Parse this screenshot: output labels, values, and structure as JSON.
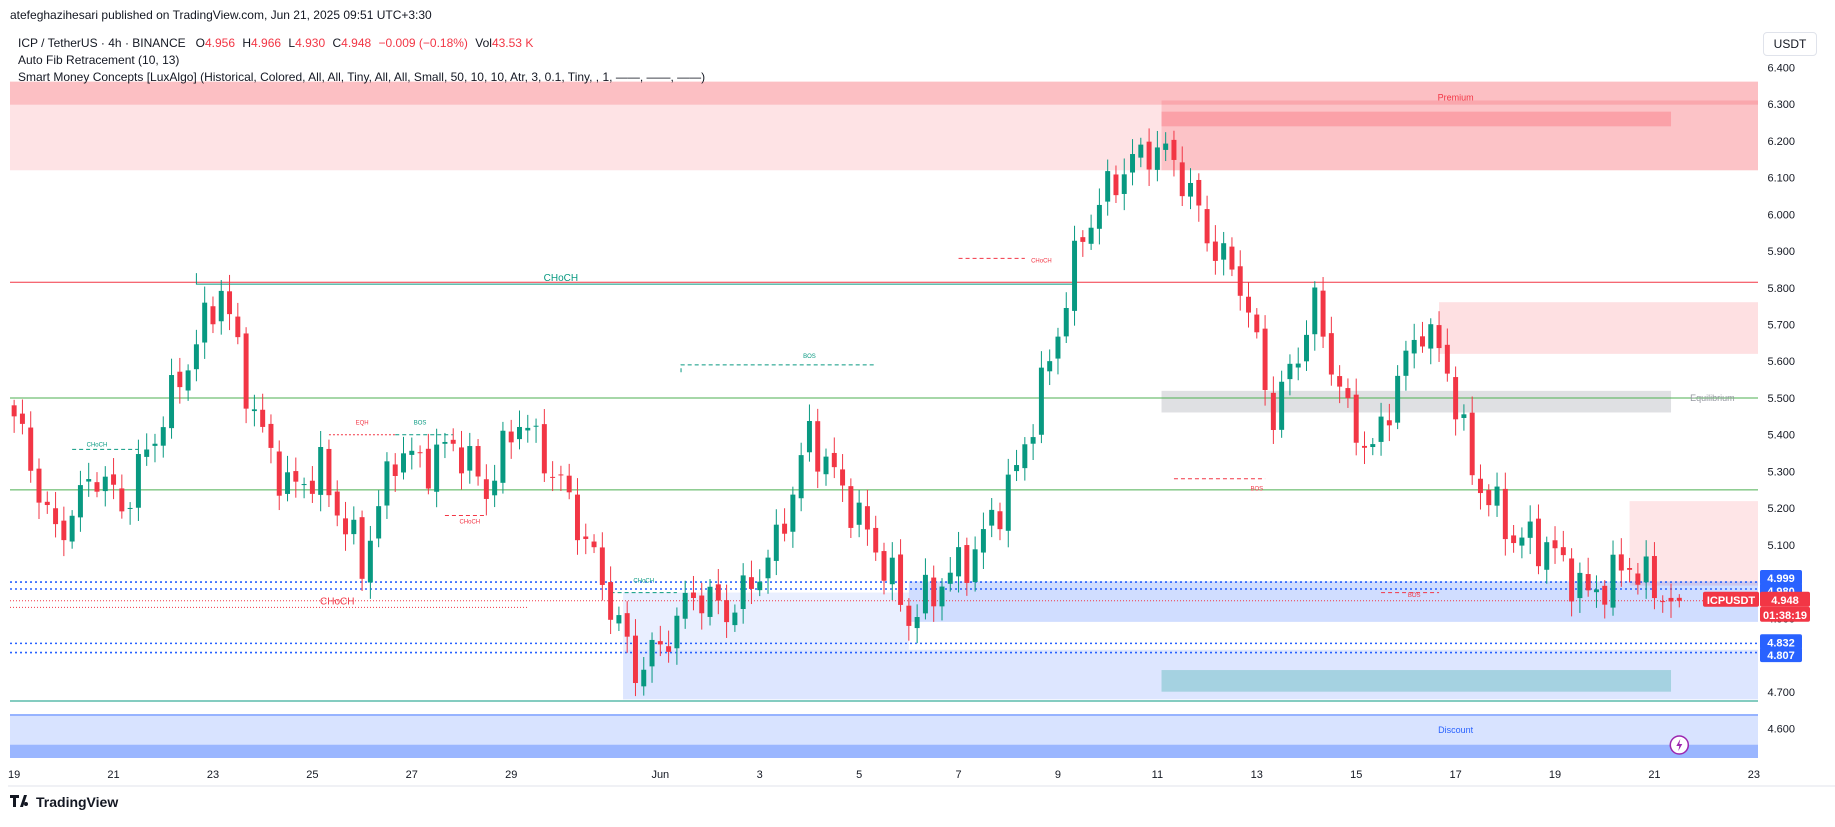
{
  "header": {
    "published_by": "atefeghazihesari published on TradingView.com, Jun 21, 2025 09:51 UTC+3:30"
  },
  "legend": {
    "symbol": "ICP / TetherUS · 4h · BINANCE",
    "open_label": "O",
    "open": "4.956",
    "high_label": "H",
    "high": "4.966",
    "low_label": "L",
    "low": "4.930",
    "close_label": "C",
    "close": "4.948",
    "change": "−0.009 (−0.18%)",
    "vol_label": "Vol",
    "volume": "43.53 K",
    "indicator_1": "Auto Fib Retracement (10, 13)",
    "indicator_2": "Smart Money Concepts [LuxAlgo] (Historical, Colored, All, All, Tiny, All, All, Small, 50, 10, 10, Atr, 3, 0.1, Tiny, , 1, ——, ——, ——)"
  },
  "currency": "USDT",
  "footer": {
    "brand": "TradingView"
  },
  "colors": {
    "up": "#089981",
    "down": "#f23645",
    "premium_zone": "#f7525f",
    "discount_zone": "#2962ff",
    "equilibrium": "#9598a1",
    "structure_bull": "#089981",
    "structure_bear": "#f23645",
    "fib_line": "#4caf50"
  },
  "chart_data": {
    "type": "candlestick",
    "title": "ICP / TetherUS · 4h · BINANCE",
    "ylim": [
      4.52,
      6.42
    ],
    "y_ticks": [
      4.6,
      4.7,
      4.8,
      4.9,
      5.0,
      5.1,
      5.2,
      5.3,
      5.4,
      5.5,
      5.6,
      5.7,
      5.8,
      5.9,
      6.0,
      6.1,
      6.2,
      6.3,
      6.4
    ],
    "y_tick_labels": [
      "4.600",
      "4.700",
      "4.800",
      "4.900",
      "5.000",
      "5.100",
      "5.200",
      "5.300",
      "5.400",
      "5.500",
      "5.600",
      "5.700",
      "5.800",
      "5.900",
      "6.000",
      "6.100",
      "6.200",
      "6.300",
      "6.400"
    ],
    "x_range": [
      -0.5,
      210.5
    ],
    "x_ticks": [
      {
        "i": 0,
        "label": "19"
      },
      {
        "i": 12,
        "label": "21"
      },
      {
        "i": 24,
        "label": "23"
      },
      {
        "i": 36,
        "label": "25"
      },
      {
        "i": 48,
        "label": "27"
      },
      {
        "i": 60,
        "label": "29"
      },
      {
        "i": 78,
        "label": "Jun"
      },
      {
        "i": 90,
        "label": "3"
      },
      {
        "i": 102,
        "label": "5"
      },
      {
        "i": 114,
        "label": "7"
      },
      {
        "i": 126,
        "label": "9"
      },
      {
        "i": 138,
        "label": "11"
      },
      {
        "i": 150,
        "label": "13"
      },
      {
        "i": 162,
        "label": "15"
      },
      {
        "i": 174,
        "label": "17"
      },
      {
        "i": 186,
        "label": "19"
      },
      {
        "i": 198,
        "label": "21"
      },
      {
        "i": 210,
        "label": "23"
      }
    ],
    "key_points": [
      [
        0,
        5.45
      ],
      [
        5,
        5.12
      ],
      [
        10,
        5.3
      ],
      [
        13,
        5.2
      ],
      [
        18,
        5.45
      ],
      [
        22,
        5.65
      ],
      [
        25,
        5.8
      ],
      [
        29,
        5.45
      ],
      [
        33,
        5.25
      ],
      [
        37,
        5.3
      ],
      [
        40,
        5.15
      ],
      [
        42,
        5.05
      ],
      [
        46,
        5.35
      ],
      [
        50,
        5.32
      ],
      [
        53,
        5.38
      ],
      [
        57,
        5.25
      ],
      [
        61,
        5.45
      ],
      [
        65,
        5.3
      ],
      [
        67,
        5.22
      ],
      [
        71,
        5.0
      ],
      [
        75,
        4.76
      ],
      [
        78,
        4.82
      ],
      [
        82,
        4.97
      ],
      [
        86,
        4.92
      ],
      [
        88,
        4.96
      ],
      [
        92,
        5.1
      ],
      [
        96,
        5.4
      ],
      [
        100,
        5.25
      ],
      [
        105,
        5.05
      ],
      [
        108,
        4.9
      ],
      [
        112,
        5.0
      ],
      [
        116,
        5.08
      ],
      [
        121,
        5.3
      ],
      [
        125,
        5.6
      ],
      [
        129,
        5.95
      ],
      [
        133,
        6.1
      ],
      [
        137,
        6.18
      ],
      [
        140,
        6.15
      ],
      [
        145,
        5.9
      ],
      [
        148,
        5.82
      ],
      [
        152,
        5.45
      ],
      [
        157,
        5.75
      ],
      [
        161,
        5.45
      ],
      [
        164,
        5.35
      ],
      [
        167,
        5.55
      ],
      [
        170,
        5.7
      ],
      [
        173,
        5.58
      ],
      [
        176,
        5.3
      ],
      [
        181,
        5.12
      ],
      [
        185,
        5.1
      ],
      [
        190,
        4.96
      ],
      [
        195,
        5.05
      ],
      [
        197,
        5.0
      ],
      [
        200,
        4.95
      ],
      [
        201,
        4.948
      ]
    ],
    "series": [
      {
        "name": "Premium zone",
        "from": 6.12,
        "to": 6.36,
        "label": "Premium"
      },
      {
        "name": "Discount zone",
        "from": 4.55,
        "to": 4.68,
        "label": "Discount"
      },
      {
        "name": "Equilibrium",
        "value": 5.5,
        "label": "Equilibrium"
      }
    ],
    "annotations": [
      {
        "text": "CHoCH",
        "x": 66,
        "y": 5.81,
        "color": "bull",
        "size": "large"
      },
      {
        "text": "CHoCH",
        "x": 39,
        "y": 4.93,
        "color": "bear",
        "size": "large"
      },
      {
        "text": "CHoCH",
        "x": 10,
        "y": 5.36,
        "color": "bull",
        "size": "small"
      },
      {
        "text": "EQH",
        "x": 42,
        "y": 5.42,
        "color": "bear",
        "size": "small"
      },
      {
        "text": "BOS",
        "x": 49,
        "y": 5.42,
        "color": "bull",
        "size": "small"
      },
      {
        "text": "CHoCH",
        "x": 55,
        "y": 5.15,
        "color": "bear",
        "size": "small"
      },
      {
        "text": "BOS",
        "x": 96,
        "y": 5.6,
        "color": "bull",
        "size": "small"
      },
      {
        "text": "CHoCH",
        "x": 76,
        "y": 4.99,
        "color": "bull",
        "size": "small"
      },
      {
        "text": "CHoCH",
        "x": 124,
        "y": 5.86,
        "color": "bear",
        "size": "small"
      },
      {
        "text": "BOS",
        "x": 150,
        "y": 5.24,
        "color": "bear",
        "size": "small"
      },
      {
        "text": "BOS",
        "x": 169,
        "y": 4.95,
        "color": "bear",
        "size": "small"
      }
    ],
    "price_labels": [
      {
        "text": "4.999",
        "value": 4.999,
        "color": "#2962ff"
      },
      {
        "text": "4.980",
        "value": 4.98,
        "color": "#2962ff"
      },
      {
        "text": "ICPUSDT",
        "value": 4.948,
        "color": "#f23645",
        "kind": "symbol"
      },
      {
        "text": "4.948",
        "value": 4.948,
        "color": "#f23645",
        "kind": "last"
      },
      {
        "text": "01:38:19",
        "value": 4.948,
        "color": "#f23645",
        "kind": "countdown"
      },
      {
        "text": "4.832",
        "value": 4.832,
        "color": "#2962ff"
      },
      {
        "text": "4.807",
        "value": 4.807,
        "color": "#2962ff"
      }
    ]
  }
}
